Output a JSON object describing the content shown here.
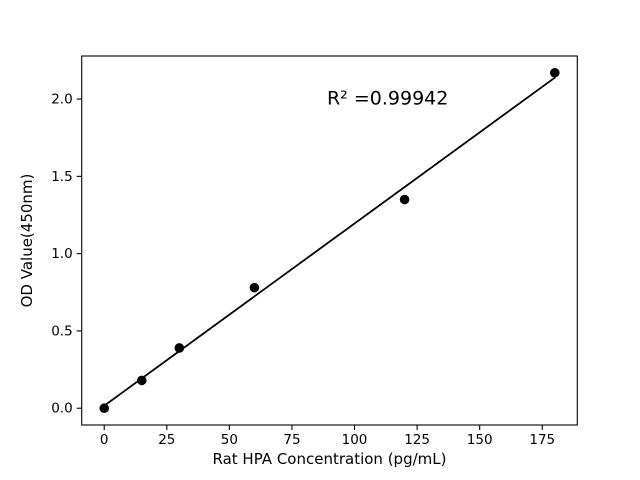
{
  "figure": {
    "background": "#ffffff"
  },
  "chart_data": {
    "type": "scatter",
    "xlabel": "Rat HPA Concentration (pg/mL)",
    "ylabel": "OD Value(450nm)",
    "x": [
      0,
      15,
      30,
      60,
      120,
      180
    ],
    "y": [
      0.0,
      0.18,
      0.39,
      0.78,
      1.35,
      2.17
    ],
    "trendline": {
      "type": "linear",
      "slope": 0.01179,
      "intercept": 0.016,
      "x_start": 0,
      "x_end": 180
    },
    "annotation": {
      "text": "R² =0.99942",
      "x": 89,
      "y": 2.0
    },
    "xticks": [
      0,
      25,
      50,
      75,
      100,
      125,
      150,
      175
    ],
    "xtick_labels": [
      "0",
      "25",
      "50",
      "75",
      "100",
      "125",
      "150",
      "175"
    ],
    "yticks": [
      0,
      0.5,
      1.0,
      1.5,
      2.0
    ],
    "ytick_labels": [
      "0.0",
      "0.5",
      "1.0",
      "1.5",
      "2.0"
    ],
    "xlim": [
      -9,
      189
    ],
    "ylim": [
      -0.1085,
      2.2785
    ],
    "grid": false,
    "legend_position": "none",
    "marker_color": "#000000",
    "line_color": "#000000",
    "axis_color": "#000000",
    "text_color": "#000000"
  }
}
